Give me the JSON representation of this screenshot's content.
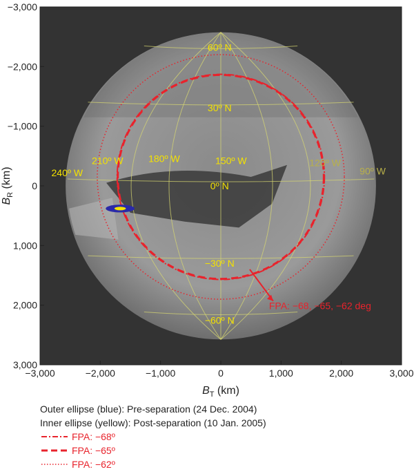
{
  "chart_data": {
    "type": "scatter",
    "xlabel": "B",
    "xlabel_sub": "T",
    "xlabel_unit": " (km)",
    "ylabel": "B",
    "ylabel_sub": "R",
    "ylabel_unit": " (km)",
    "xlim": [
      -3000,
      3000
    ],
    "ylim": [
      3000,
      -3000
    ],
    "x_ticks": [
      "−3,000",
      "−2,000",
      "−1,000",
      "0",
      "1,000",
      "2,000",
      "3,000"
    ],
    "y_ticks": [
      "−3,000",
      "−2,000",
      "−1,000",
      "0",
      "1,000",
      "2,000",
      "3,000"
    ],
    "disk_radius_km": 2575,
    "latitude_labels": [
      "60º N",
      "30º N",
      "0º N",
      "−30º N",
      "−60º N"
    ],
    "longitude_labels": [
      "240º W",
      "210º W",
      "180º W",
      "150º W",
      "120º W",
      "90º W"
    ],
    "ellipses": [
      {
        "name": "Outer ellipse (blue)",
        "center": [
          -1670,
          380
        ],
        "semi_axes": [
          240,
          65
        ],
        "color": "#2a2aa8"
      },
      {
        "name": "Inner ellipse (yellow)",
        "center": [
          -1670,
          380
        ],
        "semi_axes": [
          95,
          30
        ],
        "color": "#f4e200"
      }
    ],
    "fpa_circles": [
      {
        "fpa": "−68",
        "center": [
          0,
          -150
        ],
        "radius_km": 1720,
        "style": "dashdot"
      },
      {
        "fpa": "−65",
        "center": [
          0,
          -150
        ],
        "radius_km": 1710,
        "style": "dashed"
      },
      {
        "fpa": "−62",
        "center": [
          0,
          -150
        ],
        "radius_km": 2050,
        "style": "dotted"
      }
    ],
    "annotation": "FPA: −68, −65, −62 deg",
    "colors": {
      "fpa": "#e8232c",
      "grid": "#d8d870",
      "background": "#333333"
    }
  },
  "legend": {
    "line1": "Outer ellipse (blue): Pre-separation (24 Dec. 2004)",
    "line2": "Inner ellipse (yellow): Post-separation (10 Jan. 2005)",
    "items": [
      {
        "label": "FPA: −68º",
        "style": "dashdot"
      },
      {
        "label": "FPA: −65º",
        "style": "dashed"
      },
      {
        "label": "FPA: −62º",
        "style": "dotted"
      }
    ]
  }
}
